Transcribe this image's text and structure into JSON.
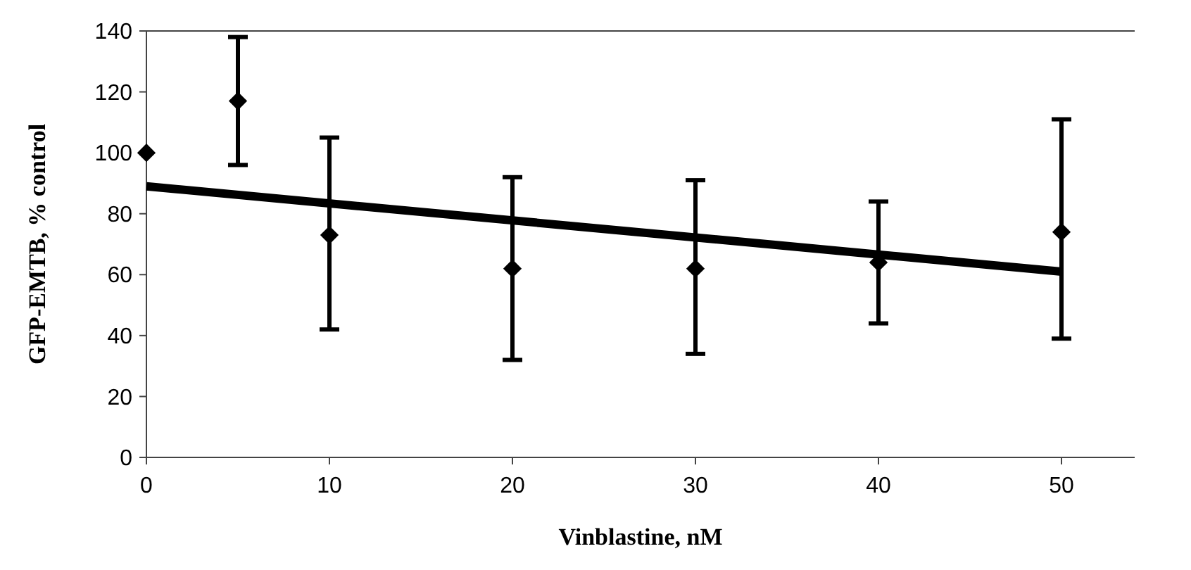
{
  "chart_data": {
    "type": "scatter",
    "xlabel": "Vinblastine, nM",
    "ylabel": "GFP-EMTB, % control",
    "xlim": [
      0,
      54
    ],
    "ylim": [
      0,
      140
    ],
    "xticks": [
      0,
      10,
      20,
      30,
      40,
      50
    ],
    "yticks": [
      0,
      20,
      40,
      60,
      80,
      100,
      120,
      140
    ],
    "grid": false,
    "series": [
      {
        "color": "#000000",
        "marker": "diamond",
        "x": [
          0,
          5,
          10,
          20,
          30,
          40,
          50
        ],
        "values": [
          100,
          117,
          73,
          62,
          62,
          64,
          74
        ],
        "errors": [
          null,
          [
            96,
            138
          ],
          [
            42,
            105
          ],
          [
            32,
            92
          ],
          [
            34,
            91
          ],
          [
            44,
            84
          ],
          [
            39,
            111
          ]
        ]
      },
      {
        "type": "line",
        "color": "#000000",
        "x": [
          0,
          50
        ],
        "values": [
          89,
          61
        ]
      }
    ]
  }
}
